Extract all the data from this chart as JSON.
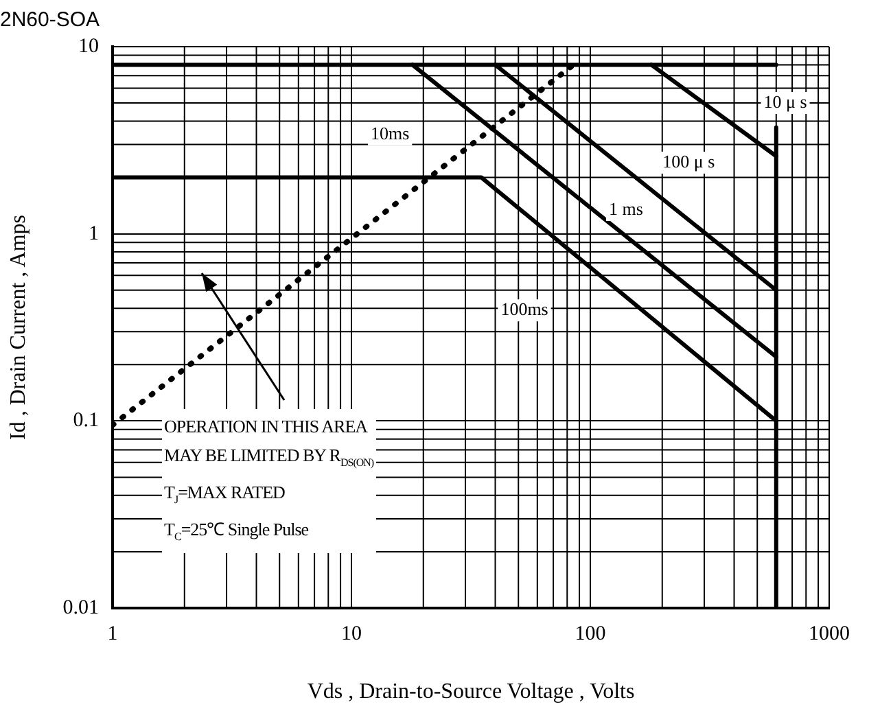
{
  "chart_data": {
    "type": "line",
    "title": "2N60-SOA",
    "xlabel": "Vds , Drain-to-Source Voltage , Volts",
    "ylabel": "Id , Drain Current , Amps",
    "log": "xy",
    "grid": true,
    "marker": "none",
    "legend": false,
    "xlim": [
      1,
      1000
    ],
    "xticks": [
      1,
      10,
      100,
      1000
    ],
    "ylim": [
      0.01,
      10
    ],
    "yticks": [
      0.01,
      0.1,
      1,
      10
    ],
    "series": [
      {
        "color": "#000000",
        "x": [
          1,
          600
        ],
        "values": [
          8,
          8
        ]
      },
      {
        "color": "#000000",
        "x": [
          1,
          35,
          600
        ],
        "values": [
          2,
          2,
          0.1
        ]
      },
      {
        "color": "#000000",
        "x": [
          18,
          600
        ],
        "values": [
          8,
          0.22
        ]
      },
      {
        "color": "#000000",
        "x": [
          40,
          600
        ],
        "values": [
          8,
          0.5
        ]
      },
      {
        "color": "#000000",
        "x": [
          180,
          600
        ],
        "values": [
          8,
          2.6
        ]
      },
      {
        "color": "#000000",
        "x": [
          600,
          600
        ],
        "values": [
          0.01,
          3.7
        ]
      },
      {
        "color": "#000000",
        "x": [
          1,
          85
        ],
        "values": [
          0.095,
          8
        ],
        "line_style": "dotted"
      }
    ],
    "annotations": [
      {
        "text": "10ms",
        "x": 14.5,
        "y": 3.4
      },
      {
        "text": "1 ms",
        "x": 141,
        "y": 1.34
      },
      {
        "text": "100ms",
        "x": 53,
        "y": 0.39
      },
      {
        "text": "100 μ s",
        "x": 258,
        "y": 2.4
      },
      {
        "text": "10 μ s",
        "x": 655,
        "y": 5
      },
      "OPERATION IN THIS AREA",
      "MAY BE LIMITED BY R$_{DS(ON)}$",
      "T$_{J}$=MAX RATED",
      "T$_{C}$=25℃  Single Pulse"
    ]
  }
}
